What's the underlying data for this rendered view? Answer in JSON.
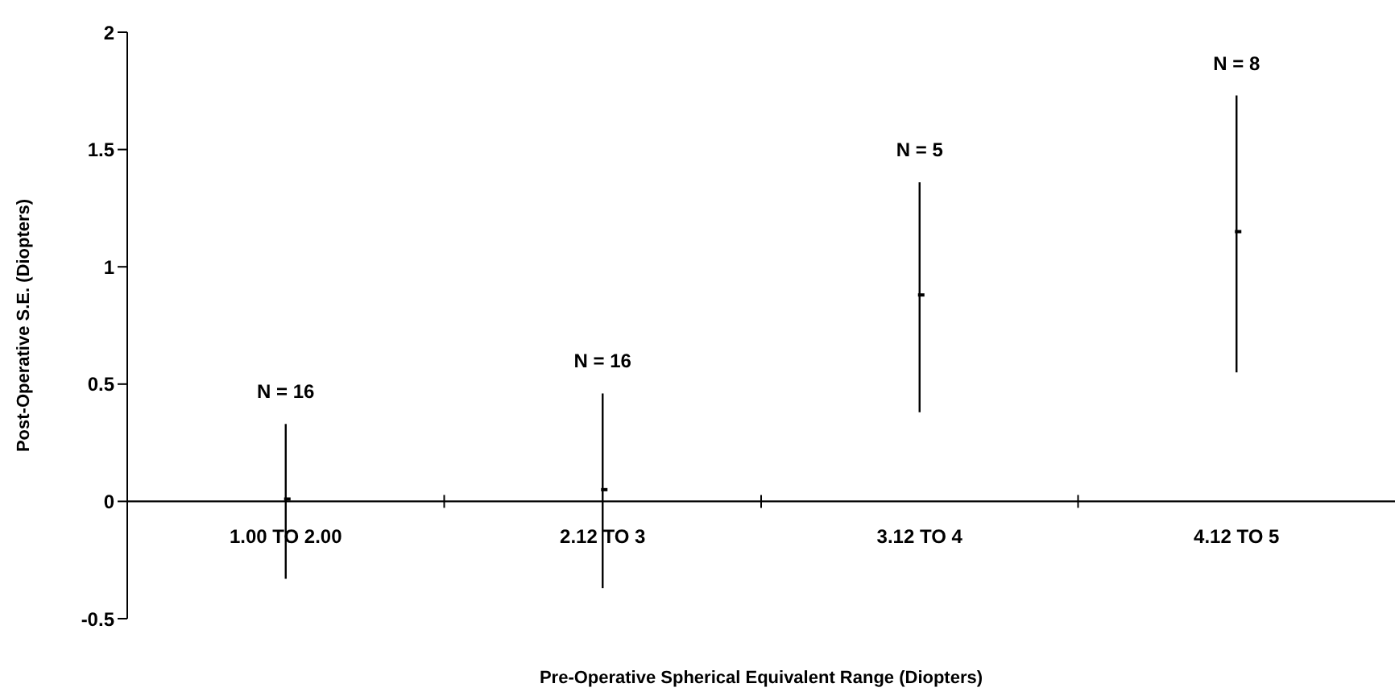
{
  "chart_data": {
    "type": "scatter",
    "xlabel": "Pre-Operative Spherical Equivalent Range (Diopters)",
    "ylabel": "Post-Operative S.E. (Diopters)",
    "categories": [
      "1.00 TO 2.00",
      "2.12 TO 3",
      "3.12 TO 4",
      "4.12 TO 5"
    ],
    "values": [
      0.01,
      0.05,
      0.88,
      1.15
    ],
    "errors": [
      [
        -0.33,
        0.33
      ],
      [
        -0.37,
        0.46
      ],
      [
        0.38,
        1.36
      ],
      [
        0.55,
        1.73
      ]
    ],
    "color": "#000000",
    "ylim": [
      -0.5,
      2
    ],
    "yticks": [
      -0.5,
      0,
      0.5,
      1,
      1.5,
      2
    ],
    "annotations": [
      "N = 16",
      "N = 16",
      "N = 5",
      "N = 8"
    ]
  }
}
